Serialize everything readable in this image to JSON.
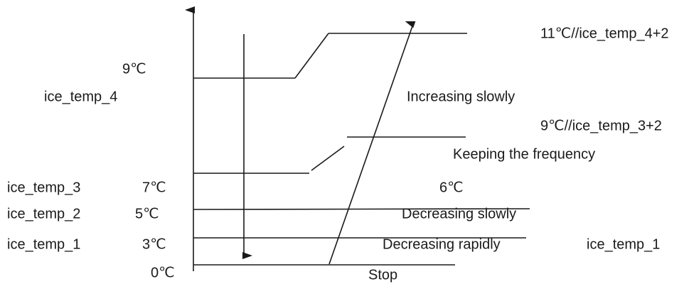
{
  "labels": [
    "11℃//ice_temp_4+2",
    "9℃",
    "ice_temp_4",
    "Increasing slowly",
    "9℃//ice_temp_3+2",
    "Keeping the frequency",
    "ice_temp_3",
    "7℃",
    "6℃",
    "ice_temp_2",
    "5℃",
    "Decreasing slowly",
    "ice_temp_1",
    "3℃",
    "Decreasing rapidly",
    "ice_temp_1",
    "0℃",
    "Stop"
  ]
}
